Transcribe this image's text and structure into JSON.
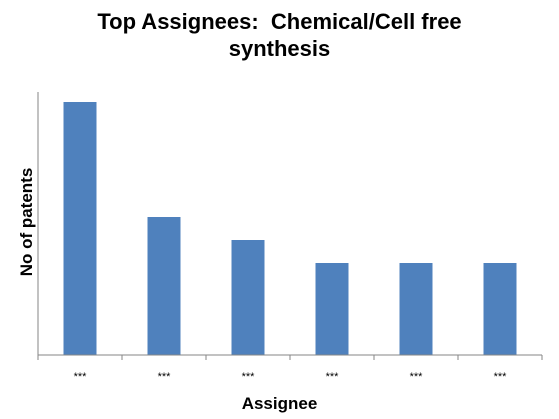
{
  "chart_data": {
    "type": "bar",
    "title": "Top Assignees: Chemical/Cell free synthesis",
    "xlabel": "Assignee",
    "ylabel": "No of patents",
    "categories": [
      "***",
      "***",
      "***",
      "***",
      "***",
      "***"
    ],
    "values": [
      11,
      6,
      5,
      4,
      4,
      4
    ],
    "ylim": [
      0,
      11
    ],
    "grid": false,
    "legend": "none",
    "bar_color": "#4f81bd",
    "axis_color": "#868686"
  }
}
